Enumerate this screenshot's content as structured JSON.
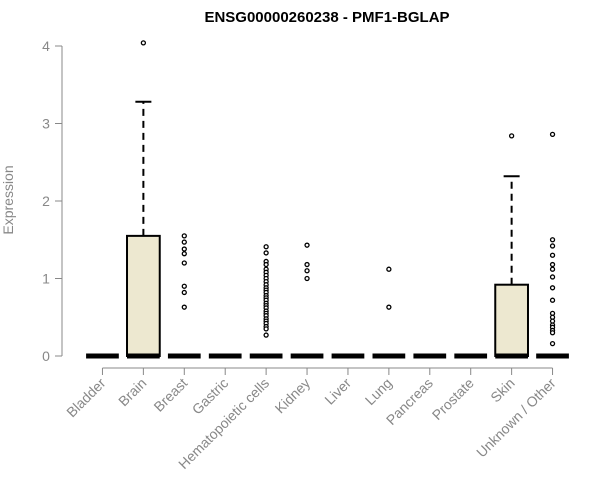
{
  "chart_data": {
    "type": "boxplot",
    "title": "ENSG00000260238 - PMF1-BGLAP",
    "ylabel": "Expression",
    "xlabel": "",
    "ylim": [
      0,
      4.1
    ],
    "yticks": [
      0,
      1,
      2,
      3,
      4
    ],
    "box_fill": "#ede8d0",
    "categories": [
      "Bladder",
      "Brain",
      "Breast",
      "Gastric",
      "Hematopoietic cells",
      "Kidney",
      "Liver",
      "Lung",
      "Pancreas",
      "Prostate",
      "Skin",
      "Unknown / Other"
    ],
    "boxes": [
      {
        "q1": 0,
        "median": 0,
        "q3": 0,
        "whisker_low": 0,
        "whisker_high": 0,
        "outliers": []
      },
      {
        "q1": 0,
        "median": 0,
        "q3": 1.55,
        "whisker_low": 0,
        "whisker_high": 3.28,
        "outliers": [
          4.04
        ]
      },
      {
        "q1": 0,
        "median": 0,
        "q3": 0,
        "whisker_low": 0,
        "whisker_high": 0,
        "outliers": [
          1.55,
          1.47,
          1.38,
          1.32,
          1.2,
          0.9,
          0.82,
          0.63
        ]
      },
      {
        "q1": 0,
        "median": 0,
        "q3": 0,
        "whisker_low": 0,
        "whisker_high": 0,
        "outliers": []
      },
      {
        "q1": 0,
        "median": 0,
        "q3": 0,
        "whisker_low": 0,
        "whisker_high": 0,
        "outliers": [
          1.41,
          1.33,
          1.22,
          1.18,
          1.12,
          1.08,
          1.04,
          1.0,
          0.96,
          0.92,
          0.88,
          0.85,
          0.82,
          0.78,
          0.75,
          0.72,
          0.68,
          0.65,
          0.62,
          0.58,
          0.55,
          0.52,
          0.48,
          0.45,
          0.42,
          0.38,
          0.35,
          0.27
        ]
      },
      {
        "q1": 0,
        "median": 0,
        "q3": 0,
        "whisker_low": 0,
        "whisker_high": 0,
        "outliers": [
          1.43,
          1.18,
          1.1,
          1.0
        ]
      },
      {
        "q1": 0,
        "median": 0,
        "q3": 0,
        "whisker_low": 0,
        "whisker_high": 0,
        "outliers": []
      },
      {
        "q1": 0,
        "median": 0,
        "q3": 0,
        "whisker_low": 0,
        "whisker_high": 0,
        "outliers": [
          1.12,
          0.63
        ]
      },
      {
        "q1": 0,
        "median": 0,
        "q3": 0,
        "whisker_low": 0,
        "whisker_high": 0,
        "outliers": []
      },
      {
        "q1": 0,
        "median": 0,
        "q3": 0,
        "whisker_low": 0,
        "whisker_high": 0,
        "outliers": []
      },
      {
        "q1": 0,
        "median": 0,
        "q3": 0.92,
        "whisker_low": 0,
        "whisker_high": 2.32,
        "outliers": [
          2.84
        ]
      },
      {
        "q1": 0,
        "median": 0,
        "q3": 0,
        "whisker_low": 0,
        "whisker_high": 0,
        "outliers": [
          2.86,
          1.5,
          1.42,
          1.3,
          1.18,
          1.12,
          1.02,
          0.88,
          0.72,
          0.55,
          0.5,
          0.45,
          0.4,
          0.37,
          0.33,
          0.3,
          0.16
        ]
      }
    ]
  }
}
